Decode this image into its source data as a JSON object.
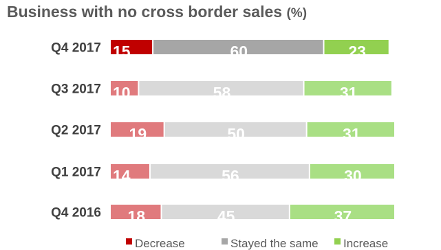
{
  "chart_data": {
    "type": "bar",
    "orientation": "horizontal",
    "stacked": true,
    "title": "Business with no cross border sales",
    "title_unit": "(%)",
    "categories": [
      "Q4 2017",
      "Q3 2017",
      "Q2 2017",
      "Q1 2017",
      "Q4 2016"
    ],
    "series": [
      {
        "name": "Decrease",
        "values": [
          15,
          10,
          19,
          14,
          18
        ]
      },
      {
        "name": "Stayed the same",
        "values": [
          60,
          58,
          50,
          56,
          45
        ]
      },
      {
        "name": "Increase",
        "values": [
          23,
          31,
          31,
          30,
          37
        ]
      }
    ],
    "data_labels": true,
    "legend_position": "bottom-right",
    "highlight_category": "Q4 2017",
    "colors": {
      "highlight": [
        "#c00000",
        "#a6a6a6",
        "#92d050"
      ],
      "normal": [
        "#e07a7d",
        "#d9d9d9",
        "#a9df84"
      ]
    }
  }
}
